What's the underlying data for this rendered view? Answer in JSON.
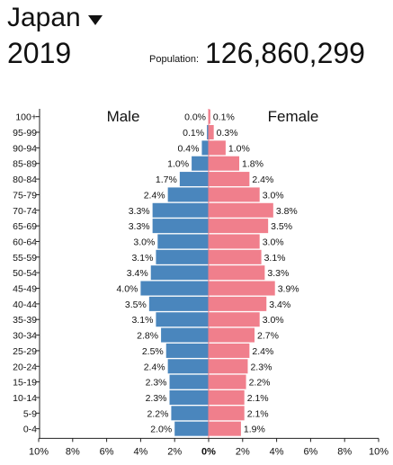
{
  "header": {
    "country": "Japan",
    "year": "2019",
    "population_label": "Population:",
    "population_value": "126,860,299"
  },
  "chart_data": {
    "type": "bar",
    "orientation": "horizontal-population-pyramid",
    "categories": [
      "100+",
      "95-99",
      "90-94",
      "85-89",
      "80-84",
      "75-79",
      "70-74",
      "65-69",
      "60-64",
      "55-59",
      "50-54",
      "45-49",
      "40-44",
      "35-39",
      "30-34",
      "25-29",
      "20-24",
      "15-19",
      "10-14",
      "5-9",
      "0-4"
    ],
    "series": [
      {
        "name": "Male",
        "color": "#4a86bd",
        "values": [
          0.0,
          0.1,
          0.4,
          1.0,
          1.7,
          2.4,
          3.3,
          3.3,
          3.0,
          3.1,
          3.4,
          4.0,
          3.5,
          3.1,
          2.8,
          2.5,
          2.4,
          2.3,
          2.3,
          2.2,
          2.0
        ]
      },
      {
        "name": "Female",
        "color": "#f07f8c",
        "values": [
          0.1,
          0.3,
          1.0,
          1.8,
          2.4,
          3.0,
          3.8,
          3.5,
          3.0,
          3.1,
          3.3,
          3.9,
          3.4,
          3.0,
          2.7,
          2.4,
          2.3,
          2.2,
          2.1,
          2.1,
          1.9
        ]
      }
    ],
    "bar_labels": {
      "male": [
        "0.0%",
        "0.1%",
        "0.4%",
        "1.0%",
        "1.7%",
        "2.4%",
        "3.3%",
        "3.3%",
        "3.0%",
        "3.1%",
        "3.4%",
        "4.0%",
        "3.5%",
        "3.1%",
        "2.8%",
        "2.5%",
        "2.4%",
        "2.3%",
        "2.3%",
        "2.2%",
        "2.0%"
      ],
      "female": [
        "0.1%",
        "0.3%",
        "1.0%",
        "1.8%",
        "2.4%",
        "3.0%",
        "3.8%",
        "3.5%",
        "3.0%",
        "3.1%",
        "3.3%",
        "3.9%",
        "3.4%",
        "3.0%",
        "2.7%",
        "2.4%",
        "2.3%",
        "2.2%",
        "2.1%",
        "2.1%",
        "1.9%"
      ]
    },
    "x_ticks": [
      "10%",
      "8%",
      "6%",
      "4%",
      "2%",
      "0%",
      "2%",
      "4%",
      "6%",
      "8%",
      "10%"
    ],
    "xlim": [
      -10,
      10
    ],
    "unit": "%",
    "grid": false
  }
}
